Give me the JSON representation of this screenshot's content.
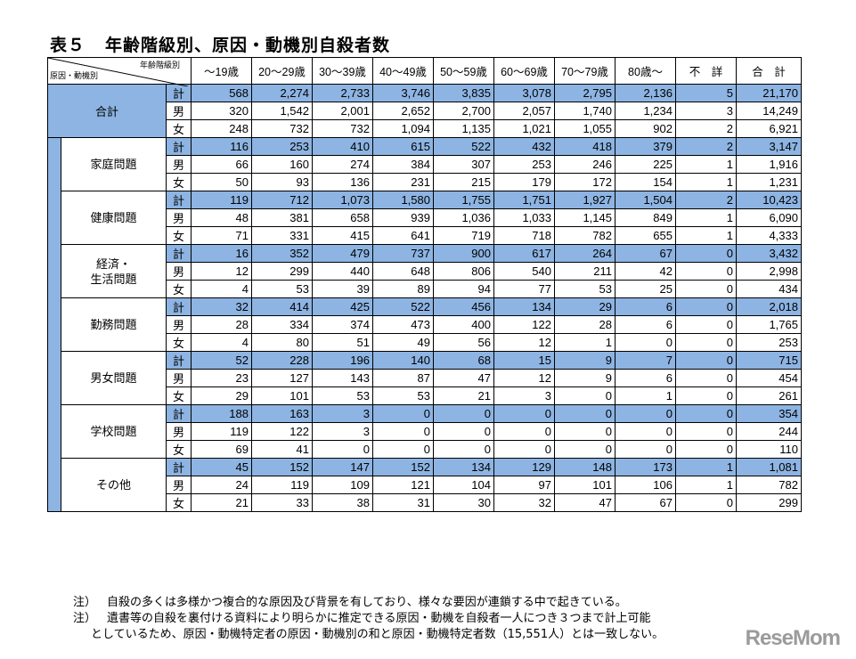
{
  "title": {
    "label": "表５",
    "text": "年齢階級別、原因・動機別自殺者数"
  },
  "header": {
    "diag_top": "年齢階級別",
    "diag_bottom": "原因・動機別",
    "columns": [
      "～19歳",
      "20～29歳",
      "30～39歳",
      "40～49歳",
      "50～59歳",
      "60～69歳",
      "70～79歳",
      "80歳～",
      "不　詳",
      "合　計"
    ]
  },
  "sex_labels": {
    "total": "計",
    "male": "男",
    "female": "女"
  },
  "groups": [
    {
      "name": "合計",
      "rows": {
        "total": [
          "568",
          "2,274",
          "2,733",
          "3,746",
          "3,835",
          "3,078",
          "2,795",
          "2,136",
          "5",
          "21,170"
        ],
        "male": [
          "320",
          "1,542",
          "2,001",
          "2,652",
          "2,700",
          "2,057",
          "1,740",
          "1,234",
          "3",
          "14,249"
        ],
        "female": [
          "248",
          "732",
          "732",
          "1,094",
          "1,135",
          "1,021",
          "1,055",
          "902",
          "2",
          "6,921"
        ]
      }
    },
    {
      "name": "家庭問題",
      "rows": {
        "total": [
          "116",
          "253",
          "410",
          "615",
          "522",
          "432",
          "418",
          "379",
          "2",
          "3,147"
        ],
        "male": [
          "66",
          "160",
          "274",
          "384",
          "307",
          "253",
          "246",
          "225",
          "1",
          "1,916"
        ],
        "female": [
          "50",
          "93",
          "136",
          "231",
          "215",
          "179",
          "172",
          "154",
          "1",
          "1,231"
        ]
      }
    },
    {
      "name": "健康問題",
      "rows": {
        "total": [
          "119",
          "712",
          "1,073",
          "1,580",
          "1,755",
          "1,751",
          "1,927",
          "1,504",
          "2",
          "10,423"
        ],
        "male": [
          "48",
          "381",
          "658",
          "939",
          "1,036",
          "1,033",
          "1,145",
          "849",
          "1",
          "6,090"
        ],
        "female": [
          "71",
          "331",
          "415",
          "641",
          "719",
          "718",
          "782",
          "655",
          "1",
          "4,333"
        ]
      }
    },
    {
      "name": "経済・",
      "name2": "生活問題",
      "rows": {
        "total": [
          "16",
          "352",
          "479",
          "737",
          "900",
          "617",
          "264",
          "67",
          "0",
          "3,432"
        ],
        "male": [
          "12",
          "299",
          "440",
          "648",
          "806",
          "540",
          "211",
          "42",
          "0",
          "2,998"
        ],
        "female": [
          "4",
          "53",
          "39",
          "89",
          "94",
          "77",
          "53",
          "25",
          "0",
          "434"
        ]
      }
    },
    {
      "name": "勤務問題",
      "rows": {
        "total": [
          "32",
          "414",
          "425",
          "522",
          "456",
          "134",
          "29",
          "6",
          "0",
          "2,018"
        ],
        "male": [
          "28",
          "334",
          "374",
          "473",
          "400",
          "122",
          "28",
          "6",
          "0",
          "1,765"
        ],
        "female": [
          "4",
          "80",
          "51",
          "49",
          "56",
          "12",
          "1",
          "0",
          "0",
          "253"
        ]
      }
    },
    {
      "name": "男女問題",
      "rows": {
        "total": [
          "52",
          "228",
          "196",
          "140",
          "68",
          "15",
          "9",
          "7",
          "0",
          "715"
        ],
        "male": [
          "23",
          "127",
          "143",
          "87",
          "47",
          "12",
          "9",
          "6",
          "0",
          "454"
        ],
        "female": [
          "29",
          "101",
          "53",
          "53",
          "21",
          "3",
          "0",
          "1",
          "0",
          "261"
        ]
      }
    },
    {
      "name": "学校問題",
      "rows": {
        "total": [
          "188",
          "163",
          "3",
          "0",
          "0",
          "0",
          "0",
          "0",
          "0",
          "354"
        ],
        "male": [
          "119",
          "122",
          "3",
          "0",
          "0",
          "0",
          "0",
          "0",
          "0",
          "244"
        ],
        "female": [
          "69",
          "41",
          "0",
          "0",
          "0",
          "0",
          "0",
          "0",
          "0",
          "110"
        ]
      }
    },
    {
      "name": "その他",
      "rows": {
        "total": [
          "45",
          "152",
          "147",
          "152",
          "134",
          "129",
          "148",
          "173",
          "1",
          "1,081"
        ],
        "male": [
          "24",
          "119",
          "109",
          "121",
          "104",
          "97",
          "101",
          "106",
          "1",
          "782"
        ],
        "female": [
          "21",
          "33",
          "38",
          "31",
          "30",
          "32",
          "47",
          "67",
          "0",
          "299"
        ]
      }
    }
  ],
  "notes": [
    {
      "label": "注）",
      "text": "自殺の多くは多様かつ複合的な原因及び背景を有しており、様々な要因が連鎖する中で起きている。"
    },
    {
      "label": "注）",
      "text": "遺書等の自殺を裏付ける資料により明らかに推定できる原因・動機を自殺者一人につき３つまで計上可能",
      "continuation": "としているため、原因・動機特定者の原因・動機別の和と原因・動機特定者数（15,551人）とは一致しない。"
    }
  ],
  "watermark": "ReseMom",
  "colors": {
    "highlight_blue": "#8db4e2"
  }
}
